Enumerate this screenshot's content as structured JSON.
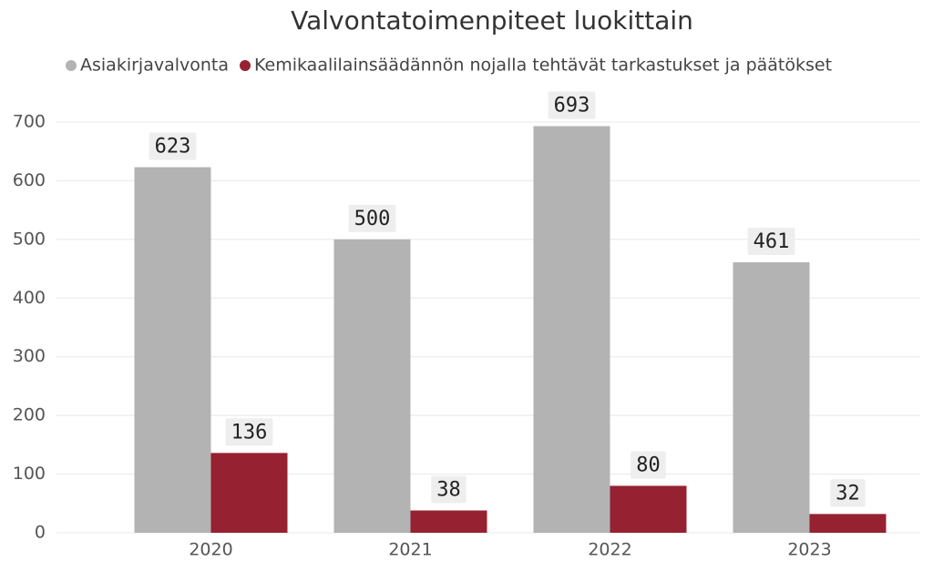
{
  "chart_data": {
    "type": "bar",
    "title": "Valvontatoimenpiteet luokittain",
    "categories": [
      "2020",
      "2021",
      "2022",
      "2023"
    ],
    "series": [
      {
        "name": "Asiakirjavalvonta",
        "color": "#b3b3b3",
        "values": [
          623,
          500,
          693,
          461
        ]
      },
      {
        "name": "Kemikaalilainsäädännön nojalla tehtävät tarkastukset ja päätökset",
        "color": "#962131",
        "values": [
          136,
          38,
          80,
          32
        ]
      }
    ],
    "ylim": [
      0,
      700
    ],
    "yticks": [
      0,
      100,
      200,
      300,
      400,
      500,
      600,
      700
    ],
    "grid": true
  }
}
